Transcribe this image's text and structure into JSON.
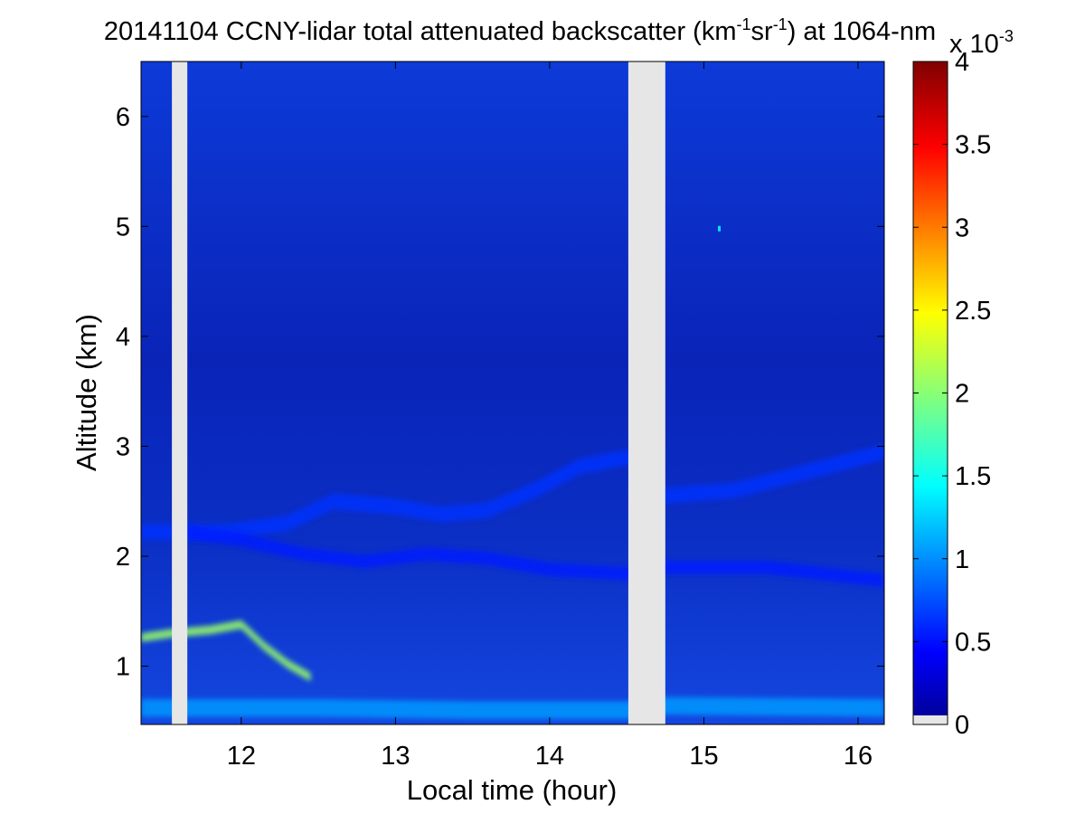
{
  "chart_data": {
    "type": "heatmap",
    "title": {
      "prefix": "20141104 CCNY-lidar total attenuated backscatter (km",
      "sup1": "-1",
      "middle": "sr",
      "sup2": "-1",
      "suffix": ") at 1064-nm"
    },
    "xlabel": "Local time (hour)",
    "ylabel": "Altitude (km)",
    "xlim": [
      11.35,
      16.17
    ],
    "ylim": [
      0.47,
      6.5
    ],
    "x_ticks": [
      {
        "value": 12,
        "label": "12"
      },
      {
        "value": 13,
        "label": "13"
      },
      {
        "value": 14,
        "label": "14"
      },
      {
        "value": 15,
        "label": "15"
      },
      {
        "value": 16,
        "label": "16"
      }
    ],
    "y_ticks": [
      {
        "value": 1,
        "label": "1"
      },
      {
        "value": 2,
        "label": "2"
      },
      {
        "value": 3,
        "label": "3"
      },
      {
        "value": 4,
        "label": "4"
      },
      {
        "value": 5,
        "label": "5"
      },
      {
        "value": 6,
        "label": "6"
      }
    ],
    "colorbar": {
      "colormap": "jet",
      "range": [
        0,
        0.004
      ],
      "exponent_label": {
        "base": "x 10",
        "sup": "-3"
      },
      "ticks": [
        {
          "value": 0,
          "label": "0"
        },
        {
          "value": 0.5,
          "label": "0.5"
        },
        {
          "value": 1,
          "label": "1"
        },
        {
          "value": 1.5,
          "label": "1.5"
        },
        {
          "value": 2,
          "label": "2"
        },
        {
          "value": 2.5,
          "label": "2.5"
        },
        {
          "value": 3,
          "label": "3"
        },
        {
          "value": 3.5,
          "label": "3.5"
        },
        {
          "value": 4,
          "label": "4"
        }
      ],
      "nodata_color": "#e6e6e6"
    },
    "data_gaps": [
      {
        "x_start": 11.55,
        "x_end": 11.65
      },
      {
        "x_start": 14.51,
        "x_end": 14.75
      }
    ],
    "layers": [
      {
        "name": "upper aerosol layer",
        "value": 0.0007,
        "points": [
          [
            11.35,
            2.22
          ],
          [
            11.9,
            2.22
          ],
          [
            12.3,
            2.3
          ],
          [
            12.6,
            2.5
          ],
          [
            13.0,
            2.45
          ],
          [
            13.3,
            2.38
          ],
          [
            13.6,
            2.42
          ],
          [
            13.9,
            2.6
          ],
          [
            14.2,
            2.82
          ],
          [
            14.51,
            2.9
          ],
          [
            14.75,
            2.55
          ],
          [
            15.2,
            2.6
          ],
          [
            15.7,
            2.78
          ],
          [
            16.17,
            2.95
          ]
        ],
        "thickness": 0.14
      },
      {
        "name": "mid aerosol layer",
        "value": 0.0006,
        "points": [
          [
            11.65,
            2.22
          ],
          [
            12.0,
            2.15
          ],
          [
            12.4,
            2.02
          ],
          [
            12.8,
            1.95
          ],
          [
            13.2,
            2.02
          ],
          [
            13.6,
            1.98
          ],
          [
            14.0,
            1.88
          ],
          [
            14.51,
            1.84
          ],
          [
            14.75,
            1.9
          ],
          [
            15.4,
            1.9
          ],
          [
            16.17,
            1.78
          ]
        ],
        "thickness": 0.12
      },
      {
        "name": "elevated dense layer",
        "value": 0.0021,
        "points": [
          [
            11.35,
            1.26
          ],
          [
            11.55,
            1.3
          ],
          [
            11.8,
            1.33
          ],
          [
            12.0,
            1.38
          ],
          [
            12.15,
            1.18
          ],
          [
            12.3,
            1.02
          ],
          [
            12.45,
            0.9
          ]
        ],
        "thickness": 0.08
      },
      {
        "name": "near-surface layer",
        "value": 0.0011,
        "points": [
          [
            11.35,
            0.62
          ],
          [
            12.5,
            0.62
          ],
          [
            13.5,
            0.6
          ],
          [
            14.51,
            0.6
          ],
          [
            14.75,
            0.64
          ],
          [
            16.17,
            0.62
          ]
        ],
        "thickness": 0.16
      }
    ],
    "isolated_points": [
      {
        "x": 15.1,
        "y": 4.98,
        "value": 0.0014
      }
    ],
    "free_troposphere_value": 0.00025
  }
}
